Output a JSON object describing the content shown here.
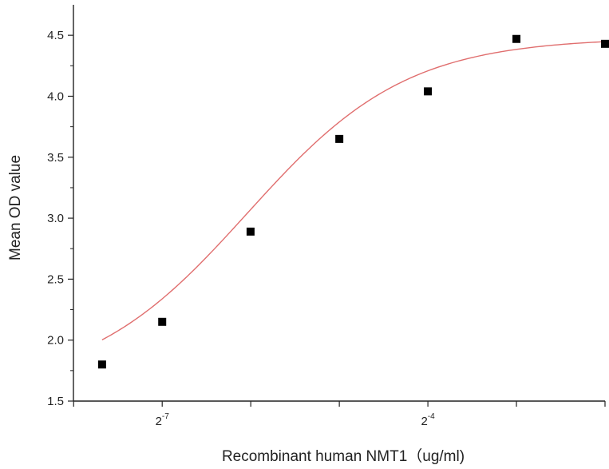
{
  "chart_data": {
    "type": "scatter",
    "title": "",
    "xlabel": "Recombinant human  NMT1（ug/ml)",
    "ylabel": "Mean OD value",
    "x_scale": "log2",
    "xlim": [
      0.0039,
      0.25
    ],
    "ylim": [
      1.5,
      4.75
    ],
    "x_ticks": [
      {
        "value": 0.0078125,
        "label_base": "2",
        "label_exp": "-7"
      },
      {
        "value": 0.0625,
        "label_base": "2",
        "label_exp": "-4"
      }
    ],
    "y_ticks": [
      "1.5",
      "2.0",
      "2.5",
      "3.0",
      "3.5",
      "4.0",
      "4.5"
    ],
    "series": [
      {
        "marker": "square",
        "color": "#000000",
        "x": [
          0.00488,
          0.0078125,
          0.0156,
          0.03125,
          0.0625,
          0.125,
          0.25
        ],
        "y": [
          1.8,
          2.15,
          2.89,
          3.65,
          4.04,
          4.47,
          4.43
        ]
      }
    ],
    "fit_curve": {
      "color": "#e06e6e",
      "model": "logistic",
      "bottom": 1.6,
      "top": 4.48,
      "ec50": 0.0152,
      "hill": 1.6
    },
    "grid": false,
    "legend": "none"
  }
}
